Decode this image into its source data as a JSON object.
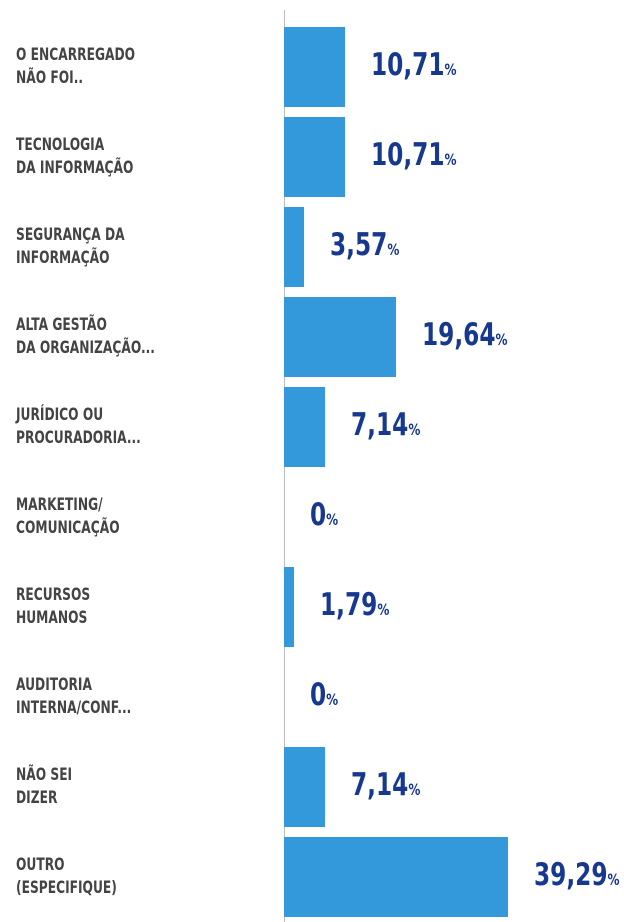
{
  "chart_data": {
    "type": "hbar",
    "categories": [
      "O ENCARREGADO\nNÃO FOI..",
      "TECNOLOGIA\nDA INFORMAÇÃO",
      "SEGURANÇA DA\nINFORMAÇÃO",
      "ALTA GESTÃO\nDA ORGANIZAÇÃO...",
      "JURÍDICO OU\nPROCURADORIA...",
      "MARKETING/\nCOMUNICAÇÃO",
      "RECURSOS\nHUMANOS",
      "AUDITORIA\nINTERNA/CONF...",
      "NÃO SEI\nDIZER",
      "OUTRO\n(ESPECIFIQUE)"
    ],
    "values": [
      10.71,
      10.71,
      3.57,
      19.64,
      7.14,
      0,
      1.79,
      0,
      7.14,
      39.29
    ],
    "value_labels": [
      "10,71%",
      "10,71%",
      "3,57%",
      "19,64%",
      "7,14%",
      "0%",
      "1,79%",
      "0%",
      "7,14%",
      "39,29%"
    ],
    "color": "#3399db",
    "xlim": [
      0,
      40
    ]
  }
}
